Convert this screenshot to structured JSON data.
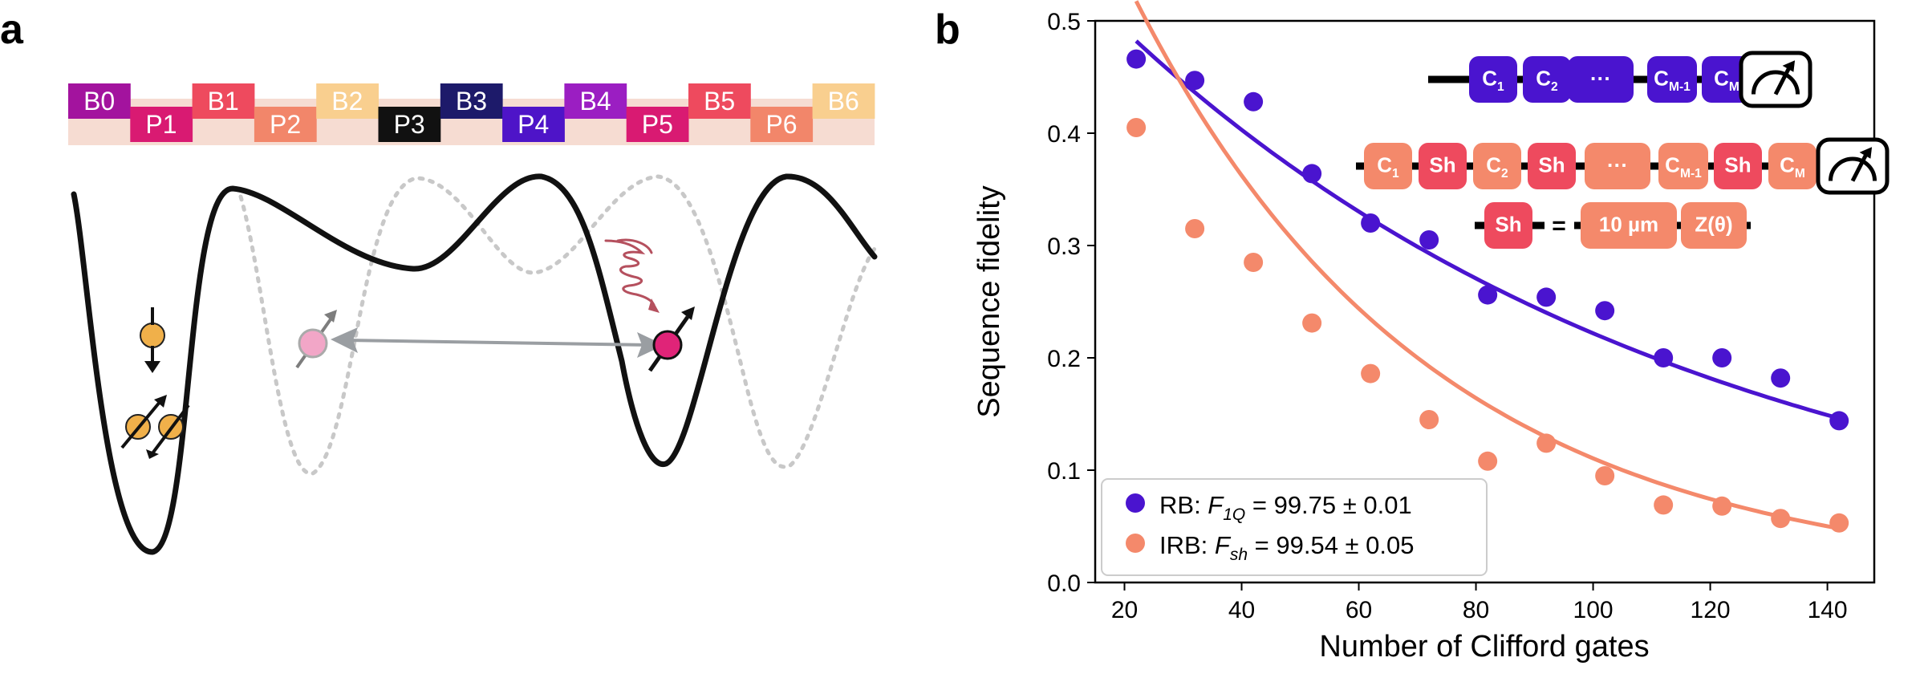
{
  "panel_a": {
    "label": "a",
    "gates": [
      {
        "label": "B0",
        "color": "#a3139e"
      },
      {
        "label": "P1",
        "color": "#d91a72"
      },
      {
        "label": "B1",
        "color": "#ee4a5e"
      },
      {
        "label": "P2",
        "color": "#f2866a"
      },
      {
        "label": "B2",
        "color": "#f9cf8f"
      },
      {
        "label": "P3",
        "color": "#111111"
      },
      {
        "label": "B3",
        "color": "#1d1a6a"
      },
      {
        "label": "P4",
        "color": "#4e14c8"
      },
      {
        "label": "B4",
        "color": "#9b1ec2"
      },
      {
        "label": "P5",
        "color": "#d91a72"
      },
      {
        "label": "B5",
        "color": "#ee4a5e"
      },
      {
        "label": "P6",
        "color": "#f2866a"
      },
      {
        "label": "B6",
        "color": "#f9cf8f"
      }
    ],
    "colors": {
      "band": "#f6dcd2",
      "potential": "#111111",
      "potential_dotted": "#c8c8c8",
      "electron": "#f0b04a",
      "electron_light": "#f2a6c7",
      "electron_dark": "#e02478",
      "arrow_gray": "#9a9ea2",
      "wave": "#b5505e"
    }
  },
  "panel_b": {
    "label": "b",
    "seq_rb": [
      "C1",
      "C2",
      "···",
      "CM-1",
      "CM"
    ],
    "seq_irb": [
      "C1",
      "Sh",
      "C2",
      "Sh",
      "···",
      "CM-1",
      "Sh",
      "CM"
    ],
    "sh_def": {
      "sh": "Sh",
      "equals": "=",
      "parts": [
        "10 µm",
        "Z(θ)"
      ]
    },
    "colors": {
      "rb": "#4a14cf",
      "irb": "#f4896b",
      "sh": "#ee4a5e"
    }
  },
  "chart_data": {
    "type": "scatter",
    "title": "",
    "xlabel": "Number of Clifford gates",
    "ylabel": "Sequence fidelity",
    "xlim": [
      15,
      148
    ],
    "ylim": [
      0.0,
      0.5
    ],
    "xticks": [
      20,
      40,
      60,
      80,
      100,
      120,
      140
    ],
    "yticks": [
      0.0,
      0.1,
      0.2,
      0.3,
      0.4,
      0.5
    ],
    "xtick_labels": [
      "20",
      "40",
      "60",
      "80",
      "100",
      "120",
      "140"
    ],
    "ytick_labels": [
      "0.0",
      "0.1",
      "0.2",
      "0.3",
      "0.4",
      "0.5"
    ],
    "x": [
      22,
      32,
      42,
      52,
      62,
      72,
      82,
      92,
      102,
      112,
      122,
      132,
      142
    ],
    "legend_position": "bottom-left",
    "series": [
      {
        "name": "RB",
        "legend_prefix": "RB: ",
        "legend_sym": "F",
        "legend_sub": "1Q",
        "legend_value": " = 99.75 ± 0.01",
        "color": "#4a14cf",
        "values": [
          0.466,
          0.447,
          0.428,
          0.364,
          0.32,
          0.305,
          0.256,
          0.254,
          0.242,
          0.2,
          0.2,
          0.182,
          0.144
        ],
        "fit": {
          "A": 0.6,
          "p": 0.9901,
          "B": 0.0
        }
      },
      {
        "name": "IRB",
        "legend_prefix": "IRB: ",
        "legend_sym": "F",
        "legend_sub": "sh",
        "legend_value": " = 99.54 ± 0.05",
        "color": "#f4896b",
        "values": [
          0.405,
          0.315,
          0.285,
          0.231,
          0.186,
          0.145,
          0.108,
          0.124,
          0.095,
          0.069,
          0.068,
          0.057,
          0.053
        ],
        "fit": {
          "A": 0.8,
          "p": 0.9804,
          "B": 0.0
        }
      }
    ]
  }
}
